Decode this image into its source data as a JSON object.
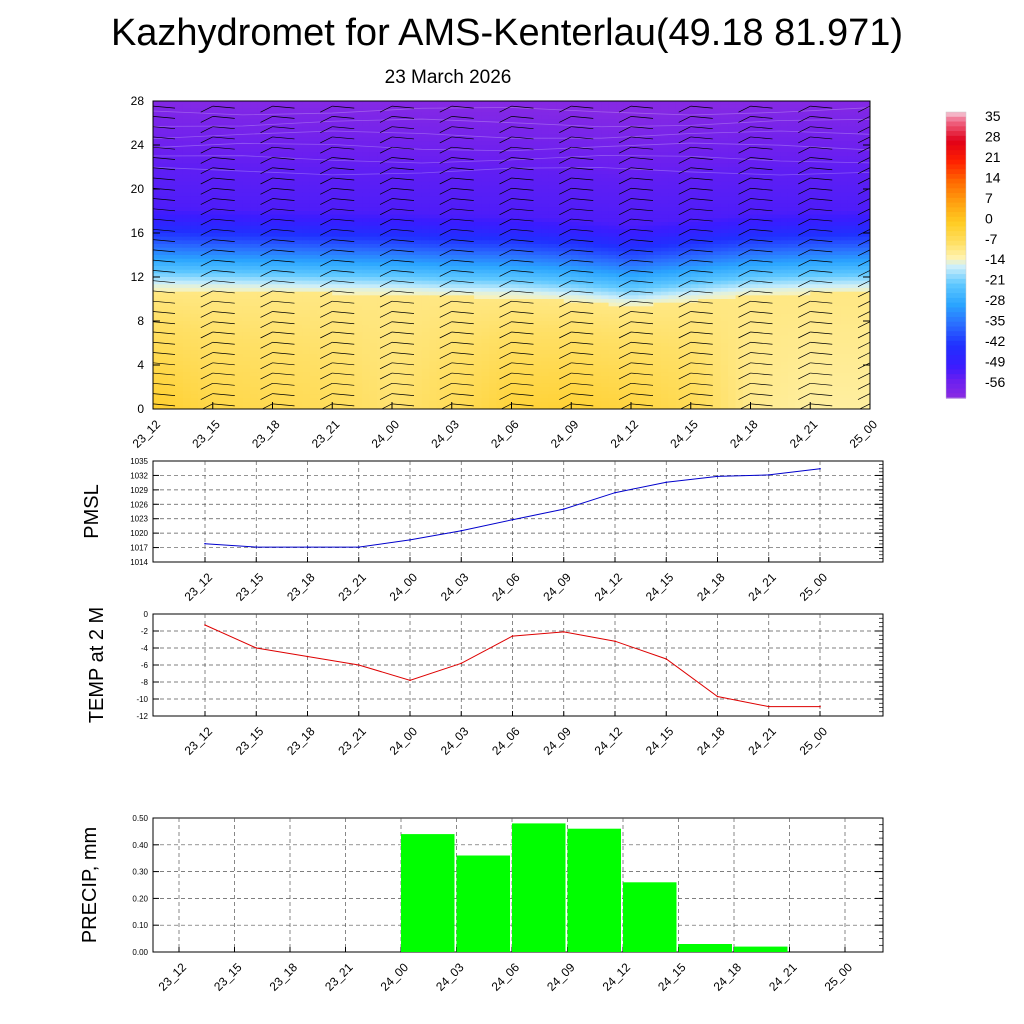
{
  "header": {
    "title": "Kazhydromet for AMS-Kenterlau(49.18 81.971)",
    "subtitle": "23 March 2026"
  },
  "chart_data": [
    {
      "type": "heatmap",
      "title": "",
      "xlabel": "",
      "ylabel": "",
      "x_ticks": [
        "23_12",
        "23_15",
        "23_18",
        "23_21",
        "24_00",
        "24_03",
        "24_06",
        "24_09",
        "24_12",
        "24_15",
        "24_18",
        "24_21",
        "25_00"
      ],
      "y_ticks": [
        0,
        4,
        8,
        12,
        16,
        20,
        24,
        28
      ],
      "ylim": [
        0,
        28
      ],
      "colorbar": {
        "labels": [
          35,
          28,
          21,
          14,
          7,
          0,
          -7,
          -14,
          -21,
          -28,
          -35,
          -42,
          -49,
          -56
        ],
        "range": [
          -60,
          38
        ],
        "stops": [
          {
            "v": -60,
            "color": "#8a2be2"
          },
          {
            "v": -54,
            "color": "#6a1ff0"
          },
          {
            "v": -49,
            "color": "#3a1cff"
          },
          {
            "v": -42,
            "color": "#2030ff"
          },
          {
            "v": -35,
            "color": "#2a6cff"
          },
          {
            "v": -28,
            "color": "#2aa5ff"
          },
          {
            "v": -21,
            "color": "#5fc8ff"
          },
          {
            "v": -15,
            "color": "#cdeffa"
          },
          {
            "v": -12,
            "color": "#fff3b0"
          },
          {
            "v": -7,
            "color": "#ffe066"
          },
          {
            "v": 0,
            "color": "#ffcc22"
          },
          {
            "v": 7,
            "color": "#ffa010"
          },
          {
            "v": 14,
            "color": "#ff6a00"
          },
          {
            "v": 21,
            "color": "#ff2000"
          },
          {
            "v": 28,
            "color": "#e00018"
          },
          {
            "v": 35,
            "color": "#f06a8a"
          },
          {
            "v": 38,
            "color": "#f6d0dc"
          }
        ]
      },
      "temperature_profile": {
        "heights": [
          0,
          3,
          6,
          9,
          10,
          11,
          12,
          13,
          14,
          15,
          16,
          17,
          18,
          20,
          22,
          24,
          26,
          28
        ],
        "values": [
          -1,
          -2,
          -4,
          -7,
          -11,
          -14,
          -20,
          -26,
          -32,
          -38,
          -43,
          -48,
          -51,
          -52,
          -53,
          -55,
          -57,
          -59
        ],
        "freezing_level_height": [
          10.8,
          10.7,
          10.6,
          10.5,
          10.4,
          10.2,
          10.1,
          9.8,
          9.3,
          9.8,
          10.3,
          10.5,
          10.6
        ],
        "surface_temp": [
          -1.2,
          -3.9,
          -4.8,
          -5.8,
          -7.7,
          -5.6,
          -2.5,
          -2.0,
          -3.1,
          -5.2,
          -9.6,
          -10.9,
          -10.9
        ]
      },
      "wind_barbs": "wind barbs plotted at each time column and height level"
    },
    {
      "type": "line",
      "title": "",
      "xlabel": "",
      "ylabel": "PMSL",
      "categories": [
        "23_12",
        "23_15",
        "23_18",
        "23_21",
        "24_00",
        "24_03",
        "24_06",
        "24_09",
        "24_12",
        "24_15",
        "24_18",
        "24_21",
        "25_00"
      ],
      "y_ticks": [
        1014,
        1017,
        1020,
        1023,
        1026,
        1029,
        1032,
        1035
      ],
      "ylim": [
        1014,
        1035
      ],
      "series": [
        {
          "color": "#0000cc",
          "values": [
            1017.8,
            1017.1,
            1017.1,
            1017.1,
            1018.6,
            1020.5,
            1022.8,
            1025.0,
            1028.4,
            1030.6,
            1031.8,
            1032.1,
            1033.4
          ]
        }
      ],
      "grid": true
    },
    {
      "type": "line",
      "title": "",
      "xlabel": "",
      "ylabel": "TEMP at 2 M",
      "categories": [
        "23_12",
        "23_15",
        "23_18",
        "23_21",
        "24_00",
        "24_03",
        "24_06",
        "24_09",
        "24_12",
        "24_15",
        "24_18",
        "24_21",
        "25_00"
      ],
      "y_ticks": [
        -12,
        -10,
        -8,
        -6,
        -4,
        -2,
        0
      ],
      "ylim": [
        -12,
        0
      ],
      "series": [
        {
          "color": "#dd0000",
          "values": [
            -1.3,
            -4.0,
            -5.0,
            -6.0,
            -7.8,
            -5.8,
            -2.6,
            -2.1,
            -3.2,
            -5.3,
            -9.7,
            -10.9,
            -10.9
          ]
        }
      ],
      "grid": true
    },
    {
      "type": "bar",
      "title": "",
      "xlabel": "",
      "ylabel": "PRECIP, mm",
      "categories": [
        "23_12",
        "23_15",
        "23_18",
        "23_21",
        "24_00",
        "24_03",
        "24_06",
        "24_09",
        "24_12",
        "24_15",
        "24_18",
        "24_21",
        "25_00"
      ],
      "y_ticks": [
        "0.00",
        "0.10",
        "0.20",
        "0.30",
        "0.40",
        "0.50"
      ],
      "ylim": [
        0,
        0.5
      ],
      "bar_color": "#00ff00",
      "values": [
        0,
        0,
        0,
        0,
        0,
        0.44,
        0.36,
        0.48,
        0.46,
        0.26,
        0.03,
        0.02,
        0
      ],
      "grid": true
    }
  ]
}
